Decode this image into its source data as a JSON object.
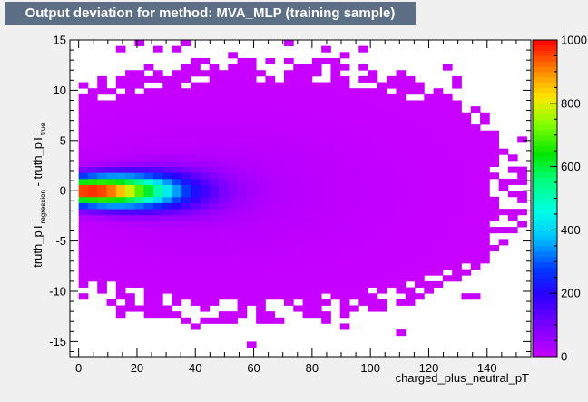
{
  "chart_data": {
    "type": "heatmap",
    "title": "Output deviation for method: MVA_MLP (training sample)",
    "xlabel": "charged_plus_neutral_pT",
    "ylabel": {
      "main": "truth_pT",
      "sub1": "regression",
      "mid": " - truth_pT",
      "sub2": "true"
    },
    "xlim": [
      -3,
      155
    ],
    "ylim": [
      -16.5,
      15
    ],
    "x_ticks": [
      0,
      20,
      40,
      60,
      80,
      100,
      120,
      140
    ],
    "y_ticks": [
      -15,
      -10,
      -5,
      0,
      5,
      10,
      15
    ],
    "z_range": [
      0,
      1000
    ],
    "z_ticks": [
      0,
      200,
      400,
      600,
      800,
      1000
    ],
    "colormap": "rainbow",
    "grid": false,
    "peak": {
      "x": 4,
      "y": 0,
      "z": 1000
    },
    "cell_size": {
      "x": 3.2,
      "y": 0.6
    }
  }
}
